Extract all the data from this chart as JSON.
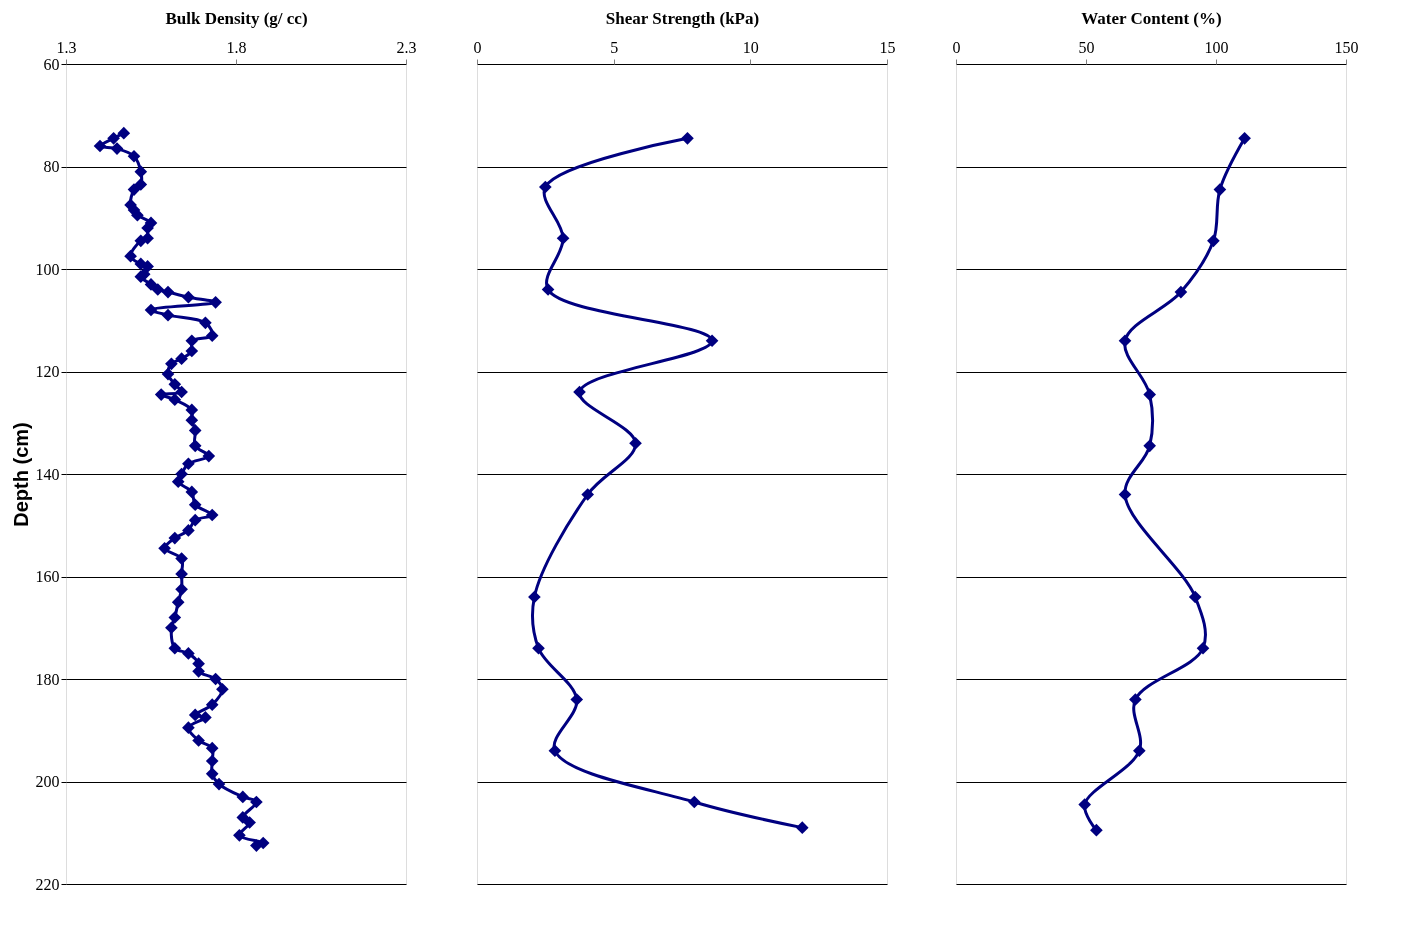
{
  "chart_data": [
    {
      "type": "line",
      "xlabel": "Bulk Density (g/ cc)",
      "ylabel": "Depth (cm)",
      "xlim": [
        1.3,
        2.3
      ],
      "xticks": [
        1.3,
        1.8,
        2.3
      ],
      "ylim": [
        220,
        60
      ],
      "yticks": [
        60,
        80,
        100,
        120,
        140,
        160,
        180,
        200,
        220
      ],
      "grid": "y",
      "marker": "diamond",
      "line_style": "solid",
      "series": [
        {
          "color": "#000080",
          "x": [
            1.47,
            1.44,
            1.4,
            1.45,
            1.5,
            1.52,
            1.52,
            1.5,
            1.49,
            1.5,
            1.51,
            1.55,
            1.54,
            1.54,
            1.52,
            1.49,
            1.52,
            1.54,
            1.53,
            1.52,
            1.55,
            1.57,
            1.6,
            1.66,
            1.74,
            1.55,
            1.6,
            1.71,
            1.73,
            1.67,
            1.67,
            1.64,
            1.61,
            1.6,
            1.62,
            1.64,
            1.58,
            1.62,
            1.67,
            1.67,
            1.68,
            1.68,
            1.72,
            1.66,
            1.64,
            1.63,
            1.67,
            1.68,
            1.73,
            1.68,
            1.66,
            1.62,
            1.59,
            1.64,
            1.64,
            1.64,
            1.63,
            1.62,
            1.61,
            1.62,
            1.66,
            1.69,
            1.69,
            1.74,
            1.76,
            1.73,
            1.68,
            1.71,
            1.66,
            1.69,
            1.73,
            1.73,
            1.73,
            1.75,
            1.82,
            1.86,
            1.82,
            1.84,
            1.81,
            1.88,
            1.86
          ],
          "values": [
            73.5,
            74.5,
            76,
            76.5,
            78,
            81,
            83.5,
            84.5,
            87.5,
            88.5,
            89.5,
            91,
            92,
            94,
            94.5,
            97.5,
            99,
            99.5,
            101,
            101.5,
            103,
            104,
            104.5,
            105.5,
            106.5,
            108,
            109,
            110.5,
            113,
            114,
            116,
            117.5,
            118.5,
            120.5,
            122.5,
            124,
            124.5,
            125.5,
            127.5,
            129.5,
            131.5,
            134.5,
            136.5,
            138,
            140,
            141.5,
            143.5,
            146,
            148,
            149,
            151,
            152.5,
            154.5,
            156.5,
            159.5,
            162.5,
            165,
            168,
            170,
            174,
            175,
            177,
            178.5,
            180,
            182,
            185,
            187,
            187.5,
            189.5,
            192,
            193.5,
            196,
            198.5,
            200.5,
            203,
            204,
            207,
            208,
            210.5,
            212,
            212.5
          ]
        }
      ]
    },
    {
      "type": "line",
      "xlabel": "Shear Strength (kPa)",
      "xlim": [
        0,
        15
      ],
      "xticks": [
        0,
        5,
        10,
        15
      ],
      "ylim": [
        220,
        60
      ],
      "yticks": [
        60,
        80,
        100,
        120,
        140,
        160,
        180,
        200,
        220
      ],
      "grid": "y",
      "marker": "diamond",
      "line_style": "solid",
      "tick_labels": "x",
      "series": [
        {
          "color": "#000080",
          "x": [
            7.7,
            2.5,
            3.15,
            2.6,
            8.6,
            3.75,
            5.8,
            4.05,
            2.1,
            2.25,
            3.65,
            2.85,
            7.95,
            11.9
          ],
          "values": [
            74.5,
            84,
            94,
            104,
            114,
            124,
            134,
            144,
            164,
            174,
            184,
            194,
            204,
            209
          ]
        }
      ]
    },
    {
      "type": "line",
      "xlabel": "Water Content (%)",
      "xlim": [
        0,
        150
      ],
      "xticks": [
        0,
        50,
        100,
        150
      ],
      "ylim": [
        220,
        60
      ],
      "yticks": [
        60,
        80,
        100,
        120,
        140,
        160,
        180,
        200,
        220
      ],
      "grid": "y",
      "marker": "diamond",
      "line_style": "solid",
      "tick_labels": "x",
      "series": [
        {
          "color": "#000080",
          "x": [
            111,
            101.5,
            99,
            86.5,
            65,
            74.5,
            74.5,
            65,
            92,
            95,
            69,
            70.5,
            49.5,
            54
          ],
          "values": [
            74.5,
            84.5,
            94.5,
            104.5,
            114,
            124.5,
            134.5,
            144,
            164,
            174,
            184,
            194,
            204.5,
            209.5
          ]
        }
      ]
    }
  ]
}
